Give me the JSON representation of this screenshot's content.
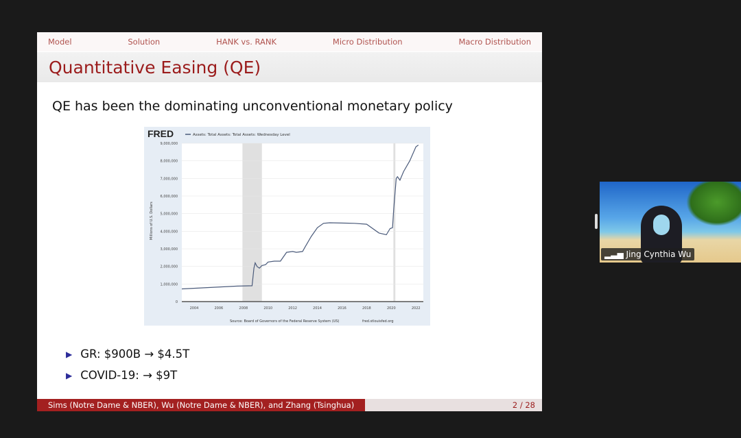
{
  "slide": {
    "nav": [
      "Model",
      "Solution",
      "HANK vs. RANK",
      "Micro Distribution",
      "Macro Distribution"
    ],
    "title": "Quantitative Easing (QE)",
    "intro": "QE has been the dominating unconventional monetary policy",
    "bullets": [
      "GR: $900B → $4.5T",
      "COVID-19: → $9T"
    ],
    "footer_authors": "Sims (Notre Dame & NBER), Wu (Notre Dame & NBER), and Zhang (Tsinghua)",
    "page": "2 / 28"
  },
  "video": {
    "participant_name": "Jing Cynthia Wu",
    "icon": "signal-bars-icon"
  },
  "chart_data": {
    "type": "line",
    "logo": "FRED",
    "legend": "Assets: Total Assets: Total Assets: Wednesday Level",
    "ylabel": "Millions of U.S. Dollars",
    "source": "Source: Board of Governors of the Federal Reserve System (US)",
    "site": "fred.stlouisfed.org",
    "xlim": [
      2003,
      2022.6
    ],
    "ylim": [
      0,
      9000000
    ],
    "xticks": [
      "2004",
      "2006",
      "2008",
      "2010",
      "2012",
      "2014",
      "2016",
      "2018",
      "2020",
      "2022"
    ],
    "yticks": [
      "0",
      "1,000,000",
      "2,000,000",
      "3,000,000",
      "4,000,000",
      "5,000,000",
      "6,000,000",
      "7,000,000",
      "8,000,000",
      "9,000,000"
    ],
    "recessions": [
      [
        2007.92,
        2009.5
      ],
      [
        2020.17,
        2020.33
      ]
    ],
    "color": "#4a5a7a",
    "x": [
      2003,
      2007.5,
      2008.7,
      2008.85,
      2008.95,
      2009.1,
      2009.3,
      2009.5,
      2009.8,
      2010,
      2010.5,
      2011,
      2011.5,
      2012,
      2012.3,
      2012.8,
      2013,
      2013.5,
      2014,
      2014.5,
      2015,
      2017,
      2018,
      2019,
      2019.6,
      2019.9,
      2020.1,
      2020.2,
      2020.4,
      2020.5,
      2020.7,
      2021,
      2021.5,
      2022,
      2022.2
    ],
    "y": [
      720000,
      880000,
      900000,
      1900000,
      2200000,
      2000000,
      1900000,
      2050000,
      2100000,
      2250000,
      2300000,
      2300000,
      2800000,
      2850000,
      2800000,
      2850000,
      3100000,
      3700000,
      4200000,
      4450000,
      4480000,
      4450000,
      4400000,
      3900000,
      3800000,
      4150000,
      4200000,
      5300000,
      7000000,
      7100000,
      6900000,
      7400000,
      8000000,
      8800000,
      8900000
    ]
  }
}
